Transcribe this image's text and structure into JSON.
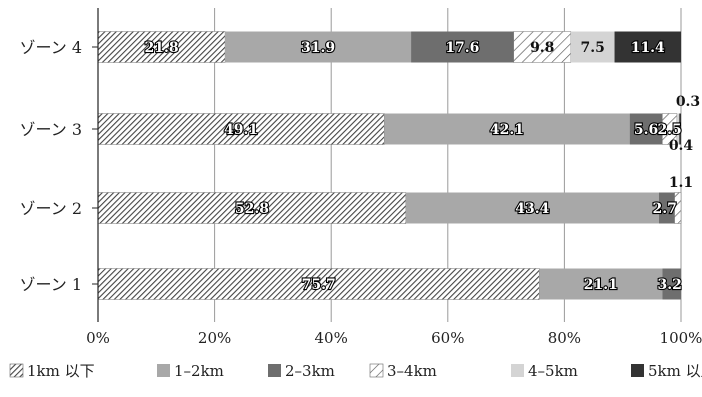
{
  "chart_data": {
    "type": "bar",
    "orientation": "horizontal",
    "stacked": true,
    "categories": [
      "ゾーン 4",
      "ゾーン 3",
      "ゾーン 2",
      "ゾーン 1"
    ],
    "series": [
      {
        "name": "1km 以下",
        "color": "#555555",
        "pattern": "hatch-diagonal-dense",
        "values": [
          21.8,
          49.1,
          52.8,
          75.7
        ]
      },
      {
        "name": "1–2km",
        "color": "#a8a8a8",
        "pattern": "solid",
        "values": [
          31.9,
          42.1,
          43.4,
          21.1
        ]
      },
      {
        "name": "2–3km",
        "color": "#6e6e6e",
        "pattern": "solid",
        "values": [
          17.6,
          5.6,
          2.7,
          3.2
        ]
      },
      {
        "name": "3–4km",
        "color": "#ffffff",
        "pattern": "hatch-diagonal-sparse",
        "values": [
          9.8,
          2.5,
          1.1,
          0
        ]
      },
      {
        "name": "4–5km",
        "color": "#d4d4d4",
        "pattern": "solid",
        "values": [
          7.5,
          0.4,
          0,
          0
        ]
      },
      {
        "name": "5km 以上",
        "color": "#333333",
        "pattern": "solid",
        "values": [
          11.4,
          0.3,
          0,
          0
        ]
      }
    ],
    "data_labels": [
      [
        "21.8",
        "31.9",
        "17.6",
        "9.8",
        "7.5",
        "11.4"
      ],
      [
        "49.1",
        "42.1",
        "5.6",
        "2.5",
        "0.4",
        "0.3"
      ],
      [
        "52.8",
        "43.4",
        "2.7",
        "1.1",
        "",
        ""
      ],
      [
        "75.7",
        "21.1",
        "3.2",
        "",
        "",
        ""
      ]
    ],
    "xlim": [
      0,
      100
    ],
    "x_ticks": [
      "0%",
      "20%",
      "40%",
      "60%",
      "80%",
      "100%"
    ],
    "grid": "vertical",
    "legend_position": "bottom",
    "title": "",
    "xlabel": "",
    "ylabel": ""
  }
}
